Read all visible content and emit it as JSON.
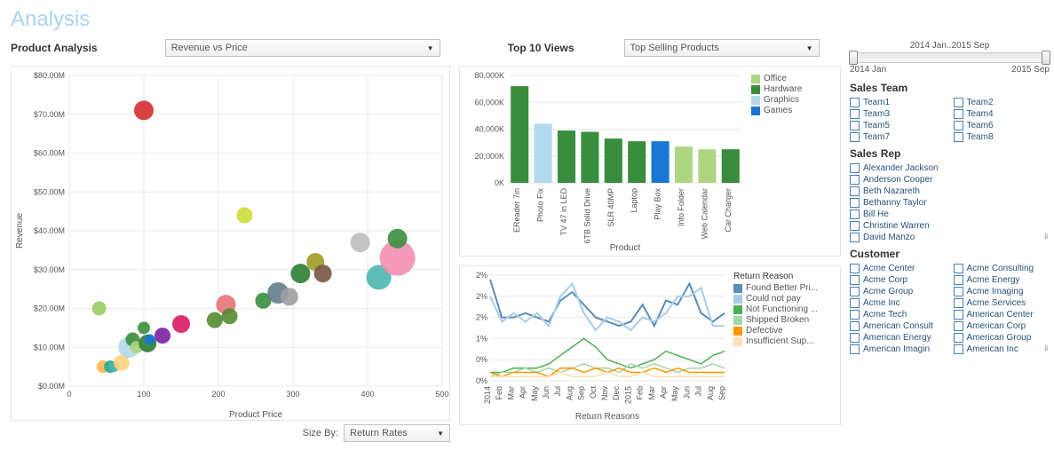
{
  "page_title": "Analysis",
  "product_analysis_label": "Product Analysis",
  "product_analysis_dropdown": "Revenue vs Price",
  "top10_label": "Top 10 Views",
  "top10_dropdown": "Top Selling Products",
  "size_by_label": "Size By:",
  "size_by_value": "Return Rates",
  "date_slider": {
    "label": "2014 Jan..2015 Sep",
    "start": "2014 Jan",
    "end": "2015 Sep"
  },
  "scatter": {
    "xlabel": "Product Price",
    "ylabel": "Revenue",
    "xlim": [
      0,
      500
    ],
    "ylim": [
      0,
      80
    ],
    "xtick_step": 100,
    "yticks": [
      "$0.00M",
      "$10.00M",
      "$20.00M",
      "$30.00M",
      "$40.00M",
      "$50.00M",
      "$60.00M",
      "$70.00M",
      "$80.00M"
    ],
    "grid_color": "#e9e9e9",
    "points": [
      {
        "x": 40,
        "y": 20,
        "r": 8,
        "c": "#9ccc65"
      },
      {
        "x": 45,
        "y": 5,
        "r": 7,
        "c": "#ffb74d"
      },
      {
        "x": 55,
        "y": 5,
        "r": 7,
        "c": "#26a69a"
      },
      {
        "x": 60,
        "y": 5,
        "r": 6,
        "c": "#4db6ac"
      },
      {
        "x": 70,
        "y": 6,
        "r": 9,
        "c": "#ffd180"
      },
      {
        "x": 80,
        "y": 10,
        "r": 12,
        "c": "#b3d9ec"
      },
      {
        "x": 85,
        "y": 12,
        "r": 8,
        "c": "#388e3c"
      },
      {
        "x": 90,
        "y": 10,
        "r": 7,
        "c": "#aed581"
      },
      {
        "x": 100,
        "y": 15,
        "r": 7,
        "c": "#388e3c"
      },
      {
        "x": 100,
        "y": 71,
        "r": 11,
        "c": "#d32f2f"
      },
      {
        "x": 105,
        "y": 11,
        "r": 10,
        "c": "#2e7d32"
      },
      {
        "x": 108,
        "y": 12,
        "r": 6,
        "c": "#1976d2"
      },
      {
        "x": 125,
        "y": 13,
        "r": 9,
        "c": "#7b1fa2"
      },
      {
        "x": 150,
        "y": 16,
        "r": 10,
        "c": "#d81b60"
      },
      {
        "x": 195,
        "y": 17,
        "r": 9,
        "c": "#558b2f"
      },
      {
        "x": 210,
        "y": 21,
        "r": 11,
        "c": "#e57373"
      },
      {
        "x": 215,
        "y": 18,
        "r": 9,
        "c": "#558b2f"
      },
      {
        "x": 260,
        "y": 22,
        "r": 9,
        "c": "#388e3c"
      },
      {
        "x": 235,
        "y": 44,
        "r": 9,
        "c": "#cddc39"
      },
      {
        "x": 280,
        "y": 24,
        "r": 12,
        "c": "#607d8b"
      },
      {
        "x": 295,
        "y": 23,
        "r": 10,
        "c": "#9e9e9e"
      },
      {
        "x": 310,
        "y": 29,
        "r": 11,
        "c": "#2e7d32"
      },
      {
        "x": 330,
        "y": 32,
        "r": 10,
        "c": "#9e9d24"
      },
      {
        "x": 340,
        "y": 29,
        "r": 10,
        "c": "#795548"
      },
      {
        "x": 390,
        "y": 37,
        "r": 11,
        "c": "#bdbdbd"
      },
      {
        "x": 415,
        "y": 28,
        "r": 14,
        "c": "#4db6ac"
      },
      {
        "x": 440,
        "y": 33,
        "r": 20,
        "c": "#f48fb1"
      },
      {
        "x": 440,
        "y": 38,
        "r": 11,
        "c": "#388e3c"
      }
    ]
  },
  "bar": {
    "xlabel": "Product",
    "ylim": [
      0,
      80000
    ],
    "yticks": [
      "0K",
      "20,000K",
      "40,000K",
      "60,000K",
      "80,000K"
    ],
    "grid_color": "#e9e9e9",
    "legend": [
      {
        "label": "Office",
        "color": "#aed581"
      },
      {
        "label": "Hardware",
        "color": "#388e3c"
      },
      {
        "label": "Graphics",
        "color": "#b3d9ec"
      },
      {
        "label": "Games",
        "color": "#1976d2"
      }
    ],
    "bars": [
      {
        "label": "EReader 7in",
        "v": 72000,
        "c": "#388e3c"
      },
      {
        "label": "Photo Fix",
        "v": 44000,
        "c": "#b3d9ec"
      },
      {
        "label": "TV 47 in LED",
        "v": 39000,
        "c": "#388e3c"
      },
      {
        "label": "6TB Solid Drive",
        "v": 38000,
        "c": "#388e3c"
      },
      {
        "label": "SLR 40MP",
        "v": 33000,
        "c": "#388e3c"
      },
      {
        "label": "Laptop",
        "v": 31000,
        "c": "#388e3c"
      },
      {
        "label": "Play Box",
        "v": 31000,
        "c": "#1976d2"
      },
      {
        "label": "Info Folder",
        "v": 27000,
        "c": "#aed581"
      },
      {
        "label": "Web Calendar",
        "v": 25000,
        "c": "#aed581"
      },
      {
        "label": "Car Charger",
        "v": 25000,
        "c": "#388e3c"
      }
    ]
  },
  "lines": {
    "title": "Return Reasons",
    "legend_title": "Return Reason",
    "yticks": [
      "0%",
      "0%",
      "1%",
      "2%",
      "2%",
      "2%"
    ],
    "xticks": [
      "2014",
      "Feb",
      "Mar",
      "Apr",
      "May",
      "Jun",
      "Jul",
      "Aug",
      "Sep",
      "Oct",
      "Nov",
      "Dec",
      "2015",
      "Feb",
      "Mar",
      "Apr",
      "May",
      "Jun",
      "Jul",
      "Aug",
      "Sep"
    ],
    "grid_color": "#e9e9e9",
    "legend": [
      {
        "label": "Found Better Pri...",
        "color": "#5b8db8"
      },
      {
        "label": "Could not pay",
        "color": "#a9cde6"
      },
      {
        "label": "Not Functioning ...",
        "color": "#4caf50"
      },
      {
        "label": "Shipped Broken",
        "color": "#a5d6a7"
      },
      {
        "label": "Defective",
        "color": "#ff9800"
      },
      {
        "label": "Insufficient Sup...",
        "color": "#ffe0b2"
      }
    ],
    "series": [
      {
        "c": "#5b8db8",
        "w": 2,
        "pts": [
          2.4,
          1.5,
          1.5,
          1.6,
          1.5,
          1.4,
          1.9,
          2.1,
          1.8,
          1.5,
          1.4,
          1.3,
          1.4,
          1.8,
          1.3,
          1.9,
          1.8,
          2.3,
          1.6,
          1.4,
          1.6
        ]
      },
      {
        "c": "#a9cde6",
        "w": 2,
        "pts": [
          2.0,
          1.4,
          1.6,
          1.4,
          1.6,
          1.3,
          2.0,
          2.3,
          1.6,
          1.2,
          1.5,
          1.4,
          1.2,
          1.5,
          1.4,
          1.6,
          2.0,
          2.0,
          2.2,
          1.3,
          1.3
        ]
      },
      {
        "c": "#4caf50",
        "w": 1.5,
        "pts": [
          0.2,
          0.2,
          0.3,
          0.3,
          0.3,
          0.4,
          0.6,
          0.8,
          1.0,
          0.8,
          0.5,
          0.4,
          0.3,
          0.4,
          0.5,
          0.7,
          0.6,
          0.5,
          0.4,
          0.6,
          0.7
        ]
      },
      {
        "c": "#a5d6a7",
        "w": 1.5,
        "pts": [
          0.1,
          0.2,
          0.2,
          0.3,
          0.2,
          0.3,
          0.2,
          0.3,
          0.4,
          0.3,
          0.3,
          0.2,
          0.4,
          0.3,
          0.4,
          0.3,
          0.2,
          0.3,
          0.3,
          0.4,
          0.3
        ]
      },
      {
        "c": "#ff9800",
        "w": 1.5,
        "pts": [
          0.2,
          0.1,
          0.2,
          0.2,
          0.2,
          0.1,
          0.3,
          0.3,
          0.2,
          0.3,
          0.2,
          0.3,
          0.2,
          0.2,
          0.3,
          0.2,
          0.3,
          0.2,
          0.2,
          0.2,
          0.2
        ]
      },
      {
        "c": "#ffe0b2",
        "w": 1.5,
        "pts": [
          0.1,
          0.1,
          0.1,
          0.1,
          0.1,
          0.1,
          0.2,
          0.1,
          0.1,
          0.1,
          0.2,
          0.1,
          0.1,
          0.2,
          0.1,
          0.1,
          0.1,
          0.1,
          0.1,
          0.1,
          0.1
        ]
      }
    ]
  },
  "filters": {
    "sales_team_title": "Sales Team",
    "teams": [
      "Team1",
      "Team2",
      "Team3",
      "Team4",
      "Team5",
      "Team6",
      "Team7",
      "Team8"
    ],
    "sales_rep_title": "Sales Rep",
    "reps": [
      "Alexander Jackson",
      "Anderson Cooper",
      "Beth Nazareth",
      "Bethanny Taylor",
      "Bill He",
      "Christine Warren",
      "David Manzo"
    ],
    "customer_title": "Customer",
    "customers": [
      "Acme Center",
      "Acme Consulting",
      "Acme Corp",
      "Acme Energy",
      "Acme Group",
      "Acme Imaging",
      "Acme Inc",
      "Acme Services",
      "Acme Tech",
      "American Center",
      "American Consult",
      "American Corp",
      "American Energy",
      "American Group",
      "American Imagin",
      "American Inc"
    ]
  }
}
